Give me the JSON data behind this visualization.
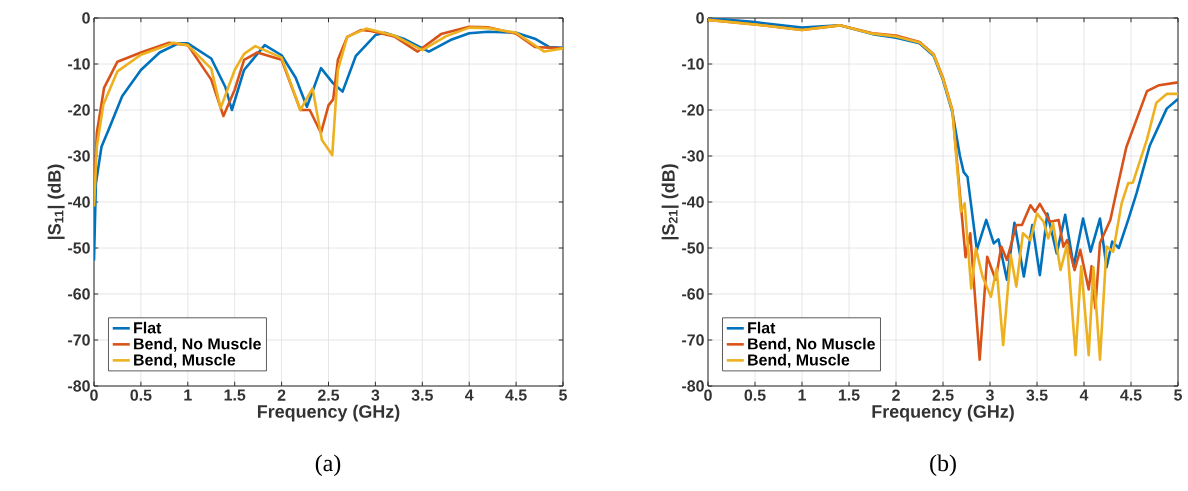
{
  "chart_data": [
    {
      "type": "line",
      "xlabel": "Frequency (GHz)",
      "ylabel": "|S$_{11}$| (dB)",
      "xlim": [
        0,
        5
      ],
      "ylim": [
        -80,
        0
      ],
      "xticks": [
        0,
        0.5,
        1,
        1.5,
        2,
        2.5,
        3,
        3.5,
        4,
        4.5,
        5
      ],
      "yticks": [
        -80,
        -70,
        -60,
        -50,
        -40,
        -30,
        -20,
        -10,
        0
      ],
      "grid": true,
      "legend": "bottom left",
      "annotations": [
        "(a)"
      ],
      "series": [
        {
          "name": "Flat",
          "color": "#0072bd",
          "x": [
            0,
            0.02,
            0.08,
            0.17,
            0.3,
            0.5,
            0.7,
            0.9,
            1.0,
            1.25,
            1.4,
            1.47,
            1.6,
            1.82,
            2.0,
            2.15,
            2.27,
            2.42,
            2.55,
            2.65,
            2.79,
            3.0,
            3.1,
            3.3,
            3.57,
            3.8,
            4.0,
            4.2,
            4.5,
            4.7,
            4.85,
            5
          ],
          "values": [
            -52.7,
            -36,
            -28,
            -23.6,
            -17,
            -11.3,
            -7.5,
            -5.5,
            -5.5,
            -8.8,
            -15,
            -20,
            -11.3,
            -5.9,
            -8.1,
            -13,
            -19.3,
            -10.9,
            -14.2,
            -16,
            -8.3,
            -3.7,
            -3.2,
            -4.5,
            -7.3,
            -4.8,
            -3.3,
            -3.0,
            -3.2,
            -4.5,
            -6.3,
            -6.5
          ]
        },
        {
          "name": "Bend, No Muscle",
          "color": "#d95319",
          "x": [
            0,
            0.03,
            0.107,
            0.25,
            0.5,
            0.8,
            1.0,
            1.25,
            1.38,
            1.5,
            1.6,
            1.74,
            2.0,
            2.2,
            2.3,
            2.42,
            2.5,
            2.55,
            2.6,
            2.7,
            2.85,
            2.95,
            3.2,
            3.45,
            3.7,
            4.0,
            4.2,
            4.5,
            4.7,
            5
          ],
          "values": [
            -40,
            -25,
            -15.2,
            -9.5,
            -7.5,
            -5.4,
            -5.9,
            -13.4,
            -21.3,
            -15.6,
            -9.1,
            -7.5,
            -9.1,
            -20,
            -20,
            -25,
            -19,
            -17.7,
            -9.1,
            -4.1,
            -2.6,
            -2.8,
            -4,
            -7.3,
            -3.5,
            -1.9,
            -2,
            -3.4,
            -6.3,
            -6.6
          ]
        },
        {
          "name": "Bend, Muscle",
          "color": "#edb120",
          "x": [
            0,
            0.03,
            0.1,
            0.25,
            0.5,
            0.85,
            1.0,
            1.25,
            1.35,
            1.5,
            1.6,
            1.72,
            2.0,
            2.2,
            2.33,
            2.43,
            2.54,
            2.6,
            2.7,
            2.9,
            3.2,
            3.5,
            3.75,
            4.0,
            4.2,
            4.5,
            4.8,
            5
          ],
          "values": [
            -41,
            -28,
            -18.8,
            -11.6,
            -8,
            -5.4,
            -5.9,
            -11,
            -19.6,
            -11.3,
            -7.8,
            -6.1,
            -8.6,
            -20,
            -15.3,
            -26.5,
            -29.8,
            -11.3,
            -4.1,
            -2.3,
            -3.8,
            -7,
            -4,
            -2.1,
            -2.2,
            -3.2,
            -7.3,
            -6.6
          ]
        }
      ]
    },
    {
      "type": "line",
      "xlabel": "Frequency (GHz)",
      "ylabel": "|S$_{21}$| (dB)",
      "xlim": [
        0,
        5
      ],
      "ylim": [
        -80,
        0
      ],
      "xticks": [
        0,
        0.5,
        1,
        1.5,
        2,
        2.5,
        3,
        3.5,
        4,
        4.5,
        5
      ],
      "yticks": [
        -80,
        -70,
        -60,
        -50,
        -40,
        -30,
        -20,
        -10,
        0
      ],
      "grid": true,
      "legend": "bottom left",
      "annotations": [
        "(b)"
      ],
      "series": [
        {
          "name": "Flat",
          "color": "#0072bd",
          "x": [
            0,
            0.5,
            1.0,
            1.4,
            1.75,
            2.0,
            2.25,
            2.4,
            2.5,
            2.6,
            2.68,
            2.72,
            2.76,
            2.86,
            2.96,
            3.04,
            3.09,
            3.18,
            3.26,
            3.36,
            3.45,
            3.53,
            3.61,
            3.71,
            3.8,
            3.89,
            3.99,
            4.07,
            4.17,
            4.24,
            4.3,
            4.37,
            4.47,
            4.56,
            4.7,
            4.88,
            5
          ],
          "values": [
            0,
            -0.9,
            -2.1,
            -1.6,
            -3.5,
            -4.3,
            -5.5,
            -8.2,
            -13.5,
            -20.5,
            -30,
            -33.5,
            -34.5,
            -50.4,
            -43.9,
            -49,
            -48.1,
            -56.9,
            -44.5,
            -56.2,
            -45,
            -55.9,
            -42.5,
            -51.2,
            -42.8,
            -54,
            -43.6,
            -50.8,
            -43.6,
            -54.2,
            -48.6,
            -50,
            -43.9,
            -38,
            -27.7,
            -19.7,
            -17.6
          ]
        },
        {
          "name": "Bend, No Muscle",
          "color": "#d95319",
          "x": [
            0,
            0.5,
            1.0,
            1.4,
            1.75,
            2.0,
            2.25,
            2.4,
            2.5,
            2.6,
            2.74,
            2.79,
            2.89,
            2.97,
            3.06,
            3.12,
            3.18,
            3.28,
            3.34,
            3.43,
            3.48,
            3.53,
            3.64,
            3.73,
            3.78,
            3.82,
            3.9,
            3.96,
            4.05,
            4.08,
            4.12,
            4.17,
            4.28,
            4.35,
            4.45,
            4.67,
            4.8,
            5
          ],
          "values": [
            -0.4,
            -1.4,
            -2.6,
            -1.6,
            -3.3,
            -3.8,
            -5.2,
            -7.9,
            -13,
            -20,
            -52,
            -46.8,
            -74.3,
            -51.9,
            -56.9,
            -49.7,
            -52.6,
            -45,
            -45,
            -40.7,
            -42.1,
            -40.4,
            -44.3,
            -43.9,
            -49.7,
            -48.3,
            -54.8,
            -50.4,
            -59,
            -54,
            -63.1,
            -48.9,
            -43.9,
            -37.3,
            -28.1,
            -15.9,
            -14.6,
            -14
          ]
        },
        {
          "name": "Bend, Muscle",
          "color": "#edb120",
          "x": [
            0,
            0.5,
            1.0,
            1.4,
            1.75,
            2.0,
            2.25,
            2.4,
            2.5,
            2.6,
            2.69,
            2.73,
            2.8,
            2.85,
            2.92,
            3.01,
            3.07,
            3.14,
            3.22,
            3.28,
            3.35,
            3.43,
            3.5,
            3.57,
            3.62,
            3.67,
            3.75,
            3.82,
            3.91,
            3.97,
            4.05,
            4.1,
            4.17,
            4.24,
            4.31,
            4.4,
            4.47,
            4.52,
            4.67,
            4.77,
            4.88,
            5
          ],
          "values": [
            -0.4,
            -1.4,
            -2.6,
            -1.6,
            -3.4,
            -4,
            -5.3,
            -8,
            -13.2,
            -20.2,
            -42.1,
            -40.3,
            -58.8,
            -50.1,
            -56.2,
            -60.6,
            -54.4,
            -71.1,
            -51.5,
            -58.4,
            -46.8,
            -48.3,
            -42.5,
            -44.3,
            -47.9,
            -44.6,
            -54.8,
            -49.3,
            -73.3,
            -54,
            -73.3,
            -54.2,
            -74.3,
            -49.7,
            -50.8,
            -40.3,
            -35.9,
            -35.8,
            -26.4,
            -18.4,
            -16.5,
            -16.5
          ]
        }
      ]
    }
  ]
}
